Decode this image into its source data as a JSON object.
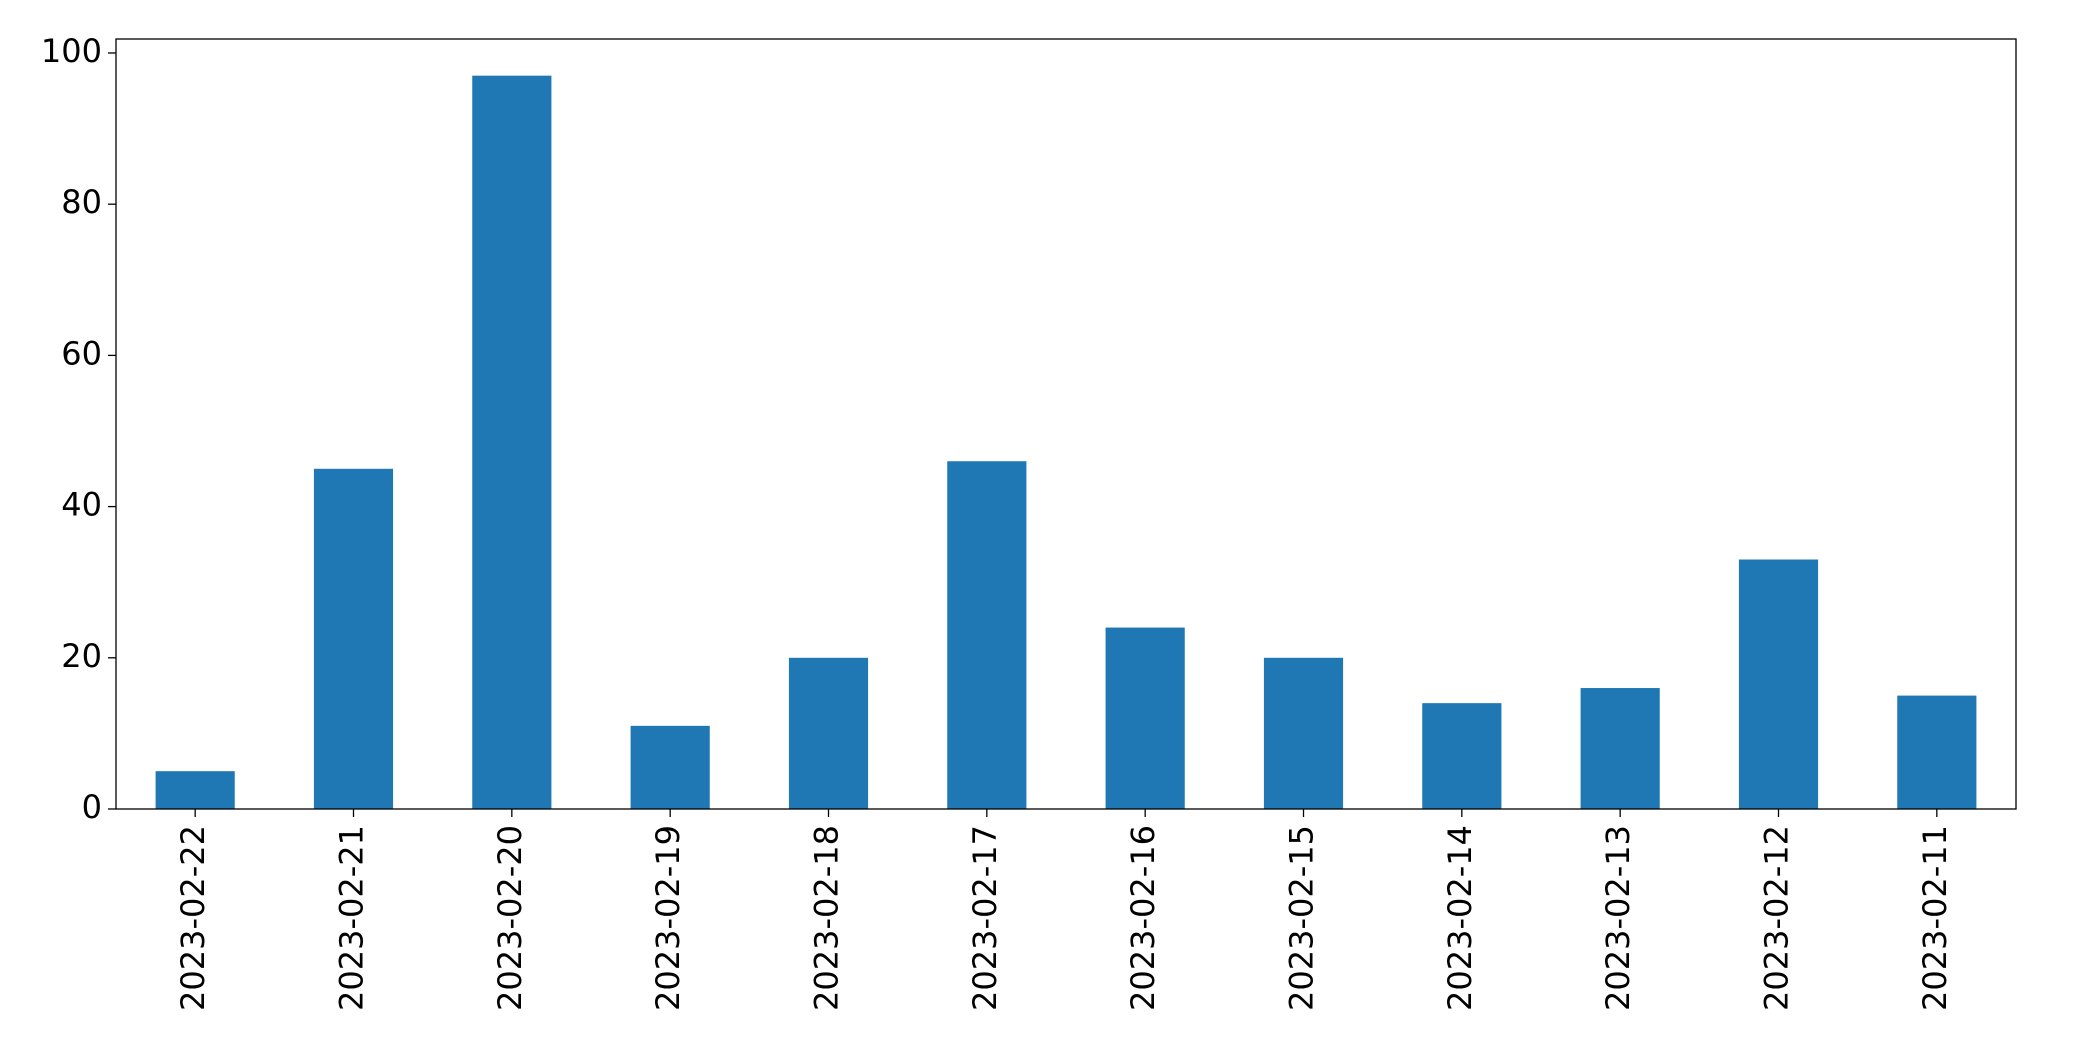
{
  "chart_data": {
    "type": "bar",
    "categories": [
      "2023-02-22",
      "2023-02-21",
      "2023-02-20",
      "2023-02-19",
      "2023-02-18",
      "2023-02-17",
      "2023-02-16",
      "2023-02-15",
      "2023-02-14",
      "2023-02-13",
      "2023-02-12",
      "2023-02-11"
    ],
    "values": [
      5,
      45,
      97,
      11,
      20,
      46,
      24,
      20,
      14,
      16,
      33,
      15
    ],
    "color": "#1f77b4",
    "ylim": [
      0,
      101.85
    ],
    "yticks": [
      0,
      20,
      40,
      60,
      80,
      100
    ],
    "grid": false
  }
}
